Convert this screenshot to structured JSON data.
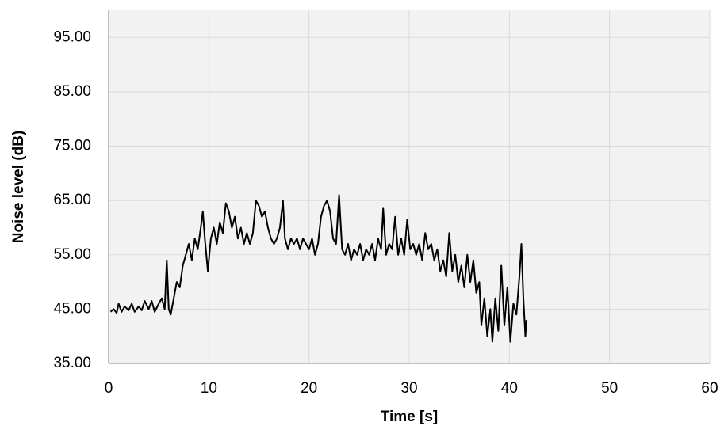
{
  "chart_data": {
    "type": "line",
    "xlabel": "Time [s]",
    "ylabel": "Noise level (dB)",
    "color": "#000000",
    "grid": true,
    "xlim": [
      0,
      60
    ],
    "xticks": [
      0,
      10,
      20,
      30,
      40,
      50,
      60
    ],
    "ylim": [
      35,
      100
    ],
    "yticks": [
      {
        "value": 35,
        "label": "35.00"
      },
      {
        "value": 45,
        "label": "45.00"
      },
      {
        "value": 55,
        "label": "55.00"
      },
      {
        "value": 65,
        "label": "65.00"
      },
      {
        "value": 75,
        "label": "75.00"
      },
      {
        "value": 85,
        "label": "85.00"
      },
      {
        "value": 95,
        "label": "95.00"
      }
    ],
    "x": [
      0.2,
      0.5,
      0.8,
      1.0,
      1.3,
      1.6,
      2.0,
      2.3,
      2.6,
      3.0,
      3.3,
      3.6,
      4.0,
      4.3,
      4.6,
      5.0,
      5.3,
      5.6,
      5.8,
      6.0,
      6.2,
      6.5,
      6.8,
      7.1,
      7.4,
      7.7,
      8.0,
      8.3,
      8.6,
      8.9,
      9.2,
      9.4,
      9.6,
      9.9,
      10.2,
      10.5,
      10.8,
      11.1,
      11.4,
      11.7,
      12.0,
      12.3,
      12.6,
      12.9,
      13.2,
      13.5,
      13.8,
      14.1,
      14.4,
      14.7,
      15.0,
      15.3,
      15.6,
      15.9,
      16.2,
      16.5,
      16.8,
      17.1,
      17.4,
      17.6,
      17.9,
      18.2,
      18.5,
      18.8,
      19.1,
      19.4,
      19.7,
      20.0,
      20.3,
      20.6,
      20.9,
      21.2,
      21.5,
      21.8,
      22.1,
      22.4,
      22.7,
      23.0,
      23.3,
      23.6,
      23.9,
      24.2,
      24.5,
      24.8,
      25.1,
      25.4,
      25.7,
      26.0,
      26.3,
      26.6,
      26.9,
      27.2,
      27.4,
      27.7,
      28.0,
      28.3,
      28.6,
      28.9,
      29.2,
      29.5,
      29.8,
      30.1,
      30.4,
      30.7,
      31.0,
      31.3,
      31.6,
      31.9,
      32.2,
      32.5,
      32.8,
      33.1,
      33.4,
      33.7,
      34.0,
      34.3,
      34.6,
      34.9,
      35.2,
      35.5,
      35.8,
      36.1,
      36.4,
      36.7,
      37.0,
      37.2,
      37.5,
      37.8,
      38.1,
      38.3,
      38.6,
      38.9,
      39.2,
      39.5,
      39.8,
      40.1,
      40.4,
      40.7,
      41.0,
      41.2,
      41.4,
      41.6,
      41.7
    ],
    "values": [
      44.5,
      45,
      44.3,
      46,
      44.5,
      45.5,
      44.8,
      46,
      44.5,
      45.5,
      44.8,
      46.5,
      45,
      46.5,
      44.5,
      46,
      47,
      45,
      54,
      45,
      44,
      47,
      50,
      49,
      53,
      55,
      57,
      54,
      58,
      56,
      60,
      63,
      58,
      52,
      58,
      60,
      57,
      61,
      59,
      64.5,
      63,
      60,
      62,
      58,
      60,
      57,
      59,
      57,
      59,
      65,
      64,
      62,
      63,
      60,
      58,
      57,
      58,
      60,
      65,
      58,
      56,
      58,
      57,
      58,
      56,
      58,
      57,
      56,
      58,
      55,
      57,
      62,
      64,
      65,
      63,
      58,
      57,
      66,
      56,
      55,
      57,
      54,
      56,
      55,
      57,
      54,
      56,
      55,
      57,
      54,
      58,
      56,
      63.5,
      55,
      57,
      56,
      62,
      55,
      58,
      55,
      61.5,
      56,
      57,
      55,
      57,
      54,
      59,
      56,
      57,
      54,
      56,
      52,
      54,
      51,
      59,
      52,
      55,
      50,
      53,
      49,
      55,
      50,
      54,
      48,
      50,
      42,
      47,
      40,
      45,
      39,
      47,
      41,
      53,
      42,
      49,
      39,
      46,
      44,
      51,
      57,
      47,
      40,
      43
    ]
  }
}
